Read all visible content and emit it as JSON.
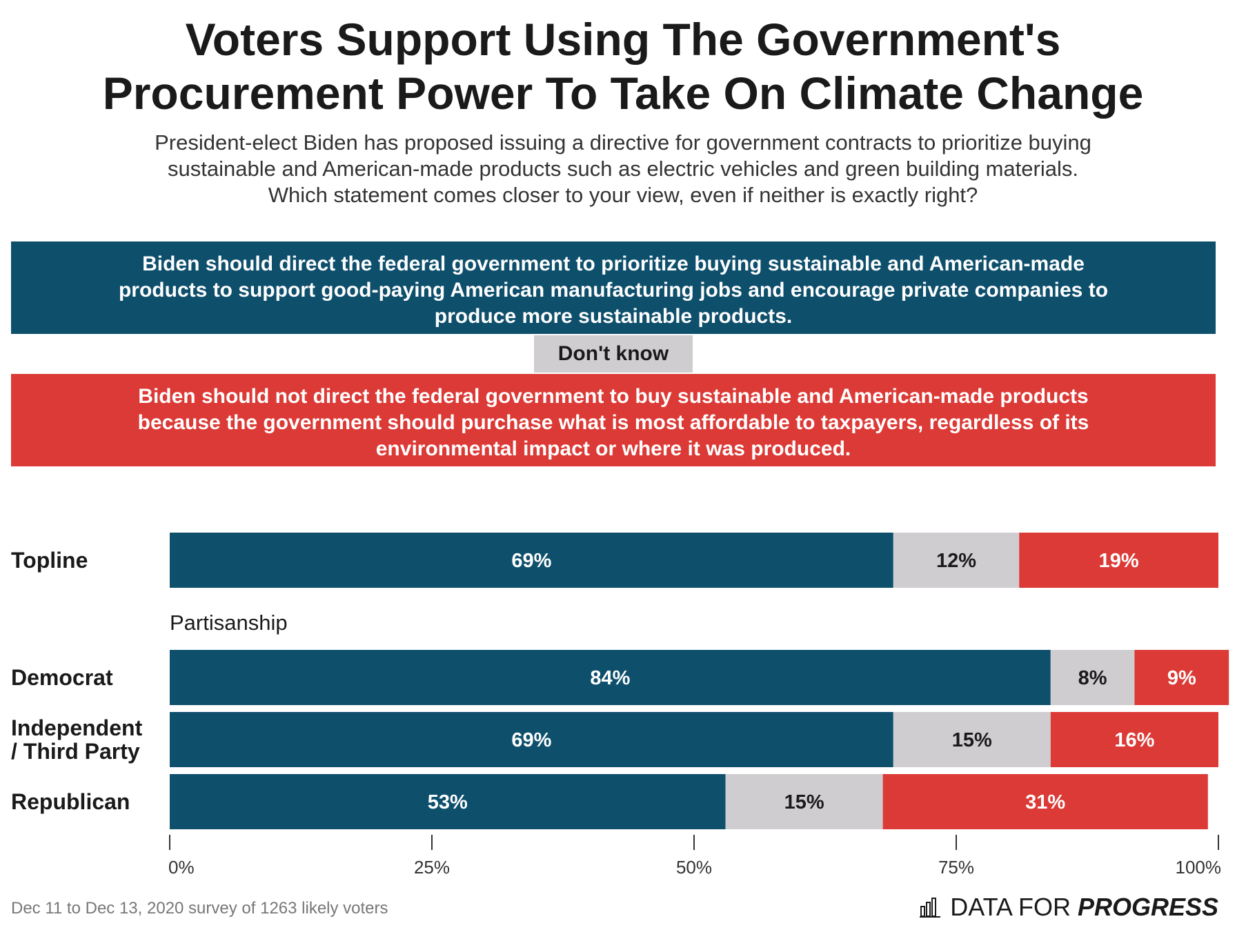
{
  "title": "Voters Support Using The Government's\nProcurement Power To Take On Climate Change",
  "subtitle": "President-elect Biden has proposed issuing a directive for government contracts to prioritize buying\nsustainable and American-made products such as electric vehicles and green building materials.\nWhich statement comes closer to your view, even if neither is exactly right?",
  "legend": {
    "support": "Biden should direct the federal government to prioritize buying sustainable and American-made\nproducts to support good-paying American manufacturing jobs and encourage private companies to\nproduce more sustainable products.",
    "dont_know": "Don't know",
    "oppose": "Biden should not direct the federal government to buy sustainable and American-made products\nbecause the government should purchase what is most affordable to taxpayers, regardless of its\nenvironmental impact or where it was produced."
  },
  "colors": {
    "support": "#0e4f6c",
    "dont_know": "#d0cdd1",
    "oppose": "#dc3a36"
  },
  "rows": {
    "topline": "Topline",
    "democrat": "Democrat",
    "independent": "Independent\n/ Third Party",
    "republican": "Republican"
  },
  "section_label": "Partisanship",
  "footer": "Dec 11 to Dec 13, 2020 survey of 1263 likely voters",
  "brand": {
    "light": "DATA FOR",
    "bold": "PROGRESS",
    "icon": "bar-chart-icon"
  },
  "chart_data": {
    "type": "bar",
    "orientation": "horizontal",
    "stacked": true,
    "categories": [
      "Topline",
      "Democrat",
      "Independent / Third Party",
      "Republican"
    ],
    "series": [
      {
        "name": "Biden should direct the federal government to prioritize buying sustainable and American-made products",
        "values": [
          69,
          84,
          69,
          53
        ]
      },
      {
        "name": "Don't know",
        "values": [
          12,
          8,
          15,
          15
        ]
      },
      {
        "name": "Biden should not direct the federal government to buy sustainable and American-made products",
        "values": [
          19,
          9,
          16,
          31
        ]
      }
    ],
    "value_labels": [
      [
        "69%",
        "12%",
        "19%"
      ],
      [
        "84%",
        "8%",
        "9%"
      ],
      [
        "69%",
        "15%",
        "16%"
      ],
      [
        "53%",
        "15%",
        "31%"
      ]
    ],
    "xlim": [
      0,
      100
    ],
    "xticks": [
      "0%",
      "25%",
      "50%",
      "75%",
      "100%"
    ],
    "grid": false
  }
}
